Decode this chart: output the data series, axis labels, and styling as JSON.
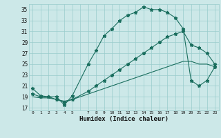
{
  "background_color": "#cce8e8",
  "grid_color": "#99cccc",
  "line_color": "#1a6e5e",
  "xlabel": "Humidex (Indice chaleur)",
  "xlim": [
    -0.5,
    23.5
  ],
  "ylim": [
    16.5,
    36.0
  ],
  "xticks": [
    0,
    1,
    2,
    3,
    4,
    5,
    6,
    7,
    8,
    9,
    10,
    11,
    12,
    13,
    14,
    15,
    16,
    17,
    18,
    19,
    20,
    21,
    22,
    23
  ],
  "xtick_labels": [
    "0",
    "1",
    "2",
    "3",
    "4",
    "5",
    "",
    "7",
    "8",
    "9",
    "10",
    "11",
    "12",
    "13",
    "14",
    "15",
    "16",
    "17",
    "18",
    "19",
    "20",
    "21",
    "22",
    "23"
  ],
  "yticks": [
    17,
    19,
    21,
    23,
    25,
    27,
    29,
    31,
    33,
    35
  ],
  "curve1_x": [
    0,
    1,
    2,
    3,
    4,
    5,
    7,
    8,
    9,
    10,
    11,
    12,
    13,
    14,
    15,
    16,
    17,
    18,
    19,
    20,
    21,
    22,
    23
  ],
  "curve1_y": [
    20.5,
    19.2,
    19.0,
    19.0,
    17.5,
    19.2,
    25.0,
    27.5,
    30.2,
    31.5,
    33.0,
    34.0,
    34.5,
    35.5,
    35.0,
    35.0,
    34.5,
    33.5,
    31.5,
    22.0,
    21.0,
    22.0,
    24.5
  ],
  "curve2_x": [
    0,
    1,
    2,
    3,
    4,
    5,
    7,
    8,
    9,
    10,
    11,
    12,
    13,
    14,
    15,
    16,
    17,
    18,
    19,
    20,
    21,
    22,
    23
  ],
  "curve2_y": [
    19.5,
    19.0,
    19.0,
    18.5,
    18.0,
    18.5,
    20.0,
    21.0,
    22.0,
    23.0,
    24.0,
    25.0,
    26.0,
    27.0,
    28.0,
    29.0,
    30.0,
    30.5,
    31.0,
    28.5,
    28.0,
    27.0,
    25.0
  ],
  "curve3_x": [
    0,
    1,
    2,
    3,
    4,
    5,
    7,
    8,
    9,
    10,
    11,
    12,
    13,
    14,
    15,
    16,
    17,
    18,
    19,
    20,
    21,
    22,
    23
  ],
  "curve3_y": [
    19.0,
    18.8,
    18.8,
    18.5,
    18.2,
    18.5,
    19.5,
    20.0,
    20.5,
    21.0,
    21.5,
    22.0,
    22.5,
    23.0,
    23.5,
    24.0,
    24.5,
    25.0,
    25.5,
    25.5,
    25.0,
    25.0,
    24.5
  ]
}
